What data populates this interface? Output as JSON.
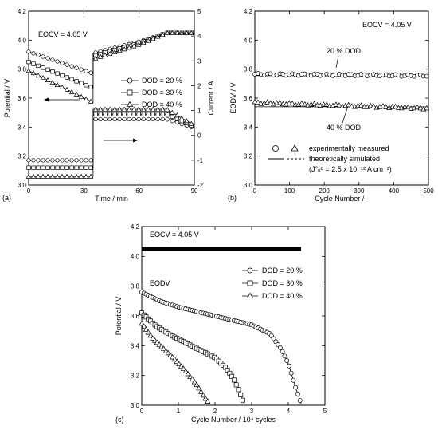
{
  "chart_data": [
    {
      "panel": "(a)",
      "type": "line",
      "xlabel": "Time / min",
      "ylabel_left": "Potential / V",
      "ylabel_right": "Current / A",
      "xlim": [
        0,
        90
      ],
      "ylim_left": [
        3.0,
        4.2
      ],
      "ylim_right": [
        -2,
        5
      ],
      "x_ticks": [
        0,
        30,
        60,
        90
      ],
      "y_ticks_left": [
        3.0,
        3.2,
        3.4,
        3.6,
        3.8,
        4.0,
        4.2
      ],
      "y_ticks_right": [
        -2,
        -1,
        0,
        1,
        2,
        3,
        4,
        5
      ],
      "annotation": "EOCV = 4.05 V",
      "legend": [
        "DOD = 20 %",
        "DOD = 30 %",
        "DOD = 40 %"
      ],
      "potential_series": [
        {
          "name": "DOD = 20 %",
          "marker": "circle",
          "x": [
            0,
            35,
            35,
            60,
            75,
            90
          ],
          "y": [
            3.92,
            3.77,
            3.91,
            3.99,
            4.05,
            4.05
          ]
        },
        {
          "name": "DOD = 30 %",
          "marker": "square",
          "x": [
            0,
            35,
            35,
            60,
            75,
            90
          ],
          "y": [
            3.85,
            3.67,
            3.89,
            3.98,
            4.05,
            4.05
          ]
        },
        {
          "name": "DOD = 40 %",
          "marker": "triangle",
          "x": [
            0,
            35,
            35,
            60,
            75,
            90
          ],
          "y": [
            3.79,
            3.57,
            3.87,
            3.97,
            4.05,
            4.05
          ]
        }
      ],
      "current_series": [
        {
          "name": "DOD = 20 %",
          "marker": "circle",
          "x": [
            0,
            35,
            35,
            75,
            90
          ],
          "y": [
            -1.0,
            -1.0,
            0.65,
            0.65,
            0.3
          ]
        },
        {
          "name": "DOD = 30 %",
          "marker": "square",
          "x": [
            0,
            35,
            35,
            75,
            90
          ],
          "y": [
            -1.3,
            -1.3,
            0.85,
            0.85,
            0.35
          ]
        },
        {
          "name": "DOD = 40 %",
          "marker": "triangle",
          "x": [
            0,
            35,
            35,
            75,
            90
          ],
          "y": [
            -1.65,
            -1.65,
            1.05,
            1.05,
            0.4
          ]
        }
      ]
    },
    {
      "panel": "(b)",
      "type": "scatter",
      "xlabel": "Cycle Number / -",
      "ylabel": "EODV / V",
      "xlim": [
        0,
        500
      ],
      "ylim": [
        3.0,
        4.2
      ],
      "x_ticks": [
        0,
        100,
        200,
        300,
        400,
        500
      ],
      "y_ticks": [
        3.0,
        3.2,
        3.4,
        3.6,
        3.8,
        4.0,
        4.2
      ],
      "annotation": "EOCV = 4.05 V",
      "labels": [
        "20 % DOD",
        "40 % DOD"
      ],
      "legend": {
        "measured": "experimentally measured",
        "simulated": "theoretically simulated",
        "param": "(J°ᵤᵈ = 2.5 x 10⁻¹² A cm⁻²)"
      },
      "series": [
        {
          "name": "20 % DOD",
          "marker": "circle",
          "sim_y": 3.755,
          "x": [
            0,
            500
          ],
          "y": [
            3.765,
            3.755
          ]
        },
        {
          "name": "40 % DOD",
          "marker": "triangle",
          "sim_y": 3.54,
          "x": [
            0,
            500
          ],
          "y": [
            3.57,
            3.53
          ]
        }
      ]
    },
    {
      "panel": "(c)",
      "type": "line",
      "xlabel": "Cycle Number / 10⁴ cycles",
      "ylabel": "Potential / V",
      "xlim": [
        0,
        5
      ],
      "ylim": [
        3.0,
        4.2
      ],
      "x_ticks": [
        0,
        1,
        2,
        3,
        4,
        5
      ],
      "y_ticks": [
        3.0,
        3.2,
        3.4,
        3.6,
        3.8,
        4.0,
        4.2
      ],
      "annotation_eocv": "EOCV = 4.05 V",
      "annotation_eodv": "EODV",
      "eocv_value": 4.05,
      "legend": [
        "DOD = 20 %",
        "DOD = 30 %",
        "DOD = 40 %"
      ],
      "series": [
        {
          "name": "DOD = 20 %",
          "marker": "circle",
          "x": [
            0,
            0.5,
            1.0,
            1.5,
            2.0,
            2.5,
            3.0,
            3.5,
            3.8,
            4.0,
            4.2,
            4.35
          ],
          "y": [
            3.76,
            3.7,
            3.66,
            3.63,
            3.6,
            3.57,
            3.54,
            3.48,
            3.38,
            3.28,
            3.12,
            3.01
          ]
        },
        {
          "name": "DOD = 30 %",
          "marker": "square",
          "x": [
            0,
            0.4,
            0.8,
            1.2,
            1.6,
            2.0,
            2.3,
            2.5,
            2.65,
            2.8
          ],
          "y": [
            3.62,
            3.53,
            3.47,
            3.42,
            3.37,
            3.32,
            3.25,
            3.18,
            3.1,
            3.01
          ]
        },
        {
          "name": "DOD = 40 %",
          "marker": "triangle",
          "x": [
            0,
            0.3,
            0.6,
            0.9,
            1.2,
            1.5,
            1.7,
            1.85
          ],
          "y": [
            3.55,
            3.45,
            3.38,
            3.31,
            3.23,
            3.14,
            3.06,
            3.01
          ]
        }
      ]
    }
  ]
}
